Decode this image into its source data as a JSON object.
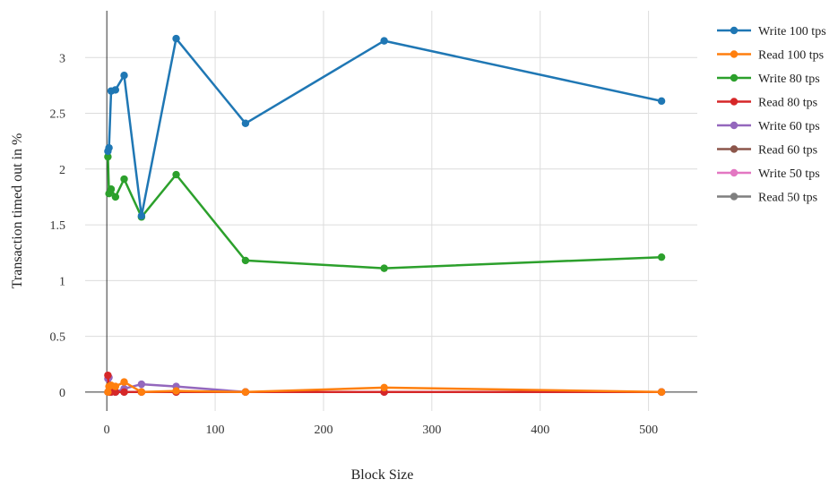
{
  "chart_data": {
    "type": "line",
    "xlabel": "Block Size",
    "ylabel": "Transaction timed out in %",
    "xlim": [
      -20,
      545
    ],
    "ylim": [
      -0.17,
      3.42
    ],
    "xticks": [
      0,
      100,
      200,
      300,
      400,
      500
    ],
    "yticks": [
      0,
      0.5,
      1,
      1.5,
      2,
      2.5,
      3
    ],
    "ytick_labels": [
      "0",
      "0.5",
      "1",
      "1.5",
      "2",
      "2.5",
      "3"
    ],
    "grid": true,
    "legend_position": "top-right",
    "x": [
      1,
      2,
      4,
      8,
      16,
      32,
      64,
      128,
      256,
      512
    ],
    "series": [
      {
        "name": "Write 100 tps",
        "color": "#1f77b4",
        "values": [
          2.16,
          2.19,
          2.7,
          2.71,
          2.84,
          1.58,
          3.17,
          2.41,
          3.15,
          2.61
        ]
      },
      {
        "name": "Read 100 tps",
        "color": "#ff7f0e",
        "values": [
          0.0,
          0.05,
          0.06,
          0.05,
          0.09,
          0.0,
          0.01,
          0.0,
          0.04,
          0.0
        ]
      },
      {
        "name": "Write 80 tps",
        "color": "#2ca02c",
        "values": [
          2.11,
          1.78,
          1.82,
          1.75,
          1.91,
          1.57,
          1.95,
          1.18,
          1.11,
          1.21
        ]
      },
      {
        "name": "Read 80 tps",
        "color": "#d62728",
        "values": [
          0.15,
          0.0,
          0.0,
          0.0,
          0.0,
          0.0,
          0.0,
          0.0,
          0.0,
          0.0
        ]
      },
      {
        "name": "Write 60 tps",
        "color": "#9467bd",
        "values": [
          0.12,
          0.13,
          0.05,
          0.0,
          0.03,
          0.07,
          0.05,
          0.0,
          0.0,
          0.0
        ]
      },
      {
        "name": "Read 60 tps",
        "color": "#8c564b",
        "values": [
          0.0,
          0.0,
          0.0,
          0.0,
          0.0,
          0.0,
          0.0,
          0.0,
          0.0,
          0.0
        ]
      },
      {
        "name": "Write 50 tps",
        "color": "#e377c2",
        "values": [
          0.0,
          0.0,
          0.0,
          0.0,
          0.0,
          0.0,
          0.0,
          0.0,
          0.0,
          0.0
        ]
      },
      {
        "name": "Read 50 tps",
        "color": "#7f7f7f",
        "values": [
          0.0,
          0.0,
          0.0,
          0.0,
          0.0,
          0.0,
          0.0,
          0.0,
          0.0,
          0.0
        ]
      }
    ]
  }
}
